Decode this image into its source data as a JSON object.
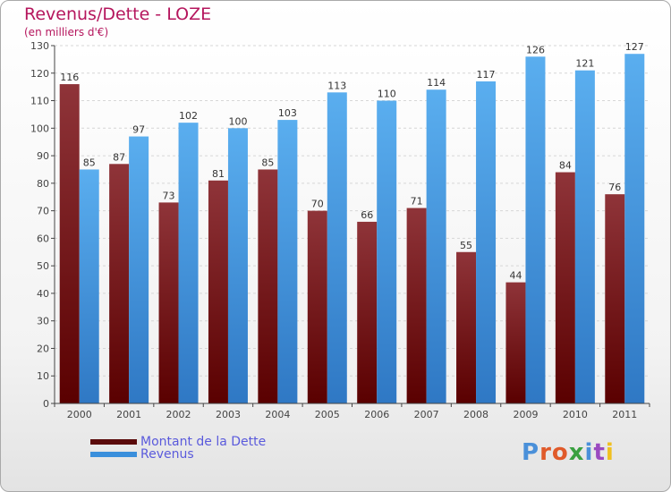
{
  "title": "Revenus/Dette - LOZE",
  "subtitle": "(en milliers d'€)",
  "logo": {
    "text": "Proxiti",
    "colors": [
      "#4a90d9",
      "#e05a2a",
      "#e05a2a",
      "#3aa040",
      "#4a90d9",
      "#9a4ac0",
      "#f0c020"
    ]
  },
  "colors": {
    "dette": "#7a2226",
    "revenus": "#4a9fe6",
    "title": "#b5165d",
    "legend_text": "#5a5adc"
  },
  "chart_data": {
    "type": "bar",
    "categories": [
      "2000",
      "2001",
      "2002",
      "2003",
      "2004",
      "2005",
      "2006",
      "2007",
      "2008",
      "2009",
      "2010",
      "2011"
    ],
    "series": [
      {
        "name": "Montant de la Dette",
        "values": [
          116,
          87,
          73,
          81,
          85,
          70,
          66,
          71,
          55,
          44,
          84,
          76
        ]
      },
      {
        "name": "Revenus",
        "values": [
          85,
          97,
          102,
          100,
          103,
          113,
          110,
          114,
          117,
          126,
          121,
          127
        ]
      }
    ],
    "ylim": [
      0,
      130
    ],
    "yticks": [
      0,
      10,
      20,
      30,
      40,
      50,
      60,
      70,
      80,
      90,
      100,
      110,
      120,
      130
    ],
    "grid": true,
    "legend": "bottom-left",
    "title": "Revenus/Dette - LOZE",
    "ylabel": "(en milliers d'€)"
  }
}
